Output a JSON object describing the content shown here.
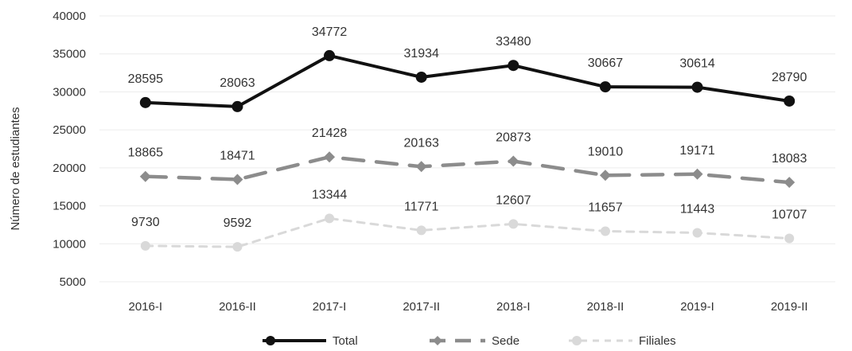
{
  "chart_data": {
    "type": "line",
    "title": "",
    "xlabel": "",
    "ylabel": "Número de estudiantes",
    "ylim": [
      5000,
      40000
    ],
    "yticks": [
      5000,
      10000,
      15000,
      20000,
      25000,
      30000,
      35000,
      40000
    ],
    "categories": [
      "2016-I",
      "2016-II",
      "2017-I",
      "2017-II",
      "2018-I",
      "2018-II",
      "2019-I",
      "2019-II"
    ],
    "grid": true,
    "legend_position": "bottom",
    "series": [
      {
        "name": "Total",
        "values": [
          28595,
          28063,
          34772,
          31934,
          33480,
          30667,
          30614,
          28790
        ],
        "color": "#111111",
        "line_style": "solid",
        "marker": "circle"
      },
      {
        "name": "Sede",
        "values": [
          18865,
          18471,
          21428,
          20163,
          20873,
          19010,
          19171,
          18083
        ],
        "color": "#8c8c8c",
        "line_style": "dashed",
        "marker": "diamond"
      },
      {
        "name": "Filiales",
        "values": [
          9730,
          9592,
          13344,
          11771,
          12607,
          11657,
          11443,
          10707
        ],
        "color": "#d9d9d9",
        "line_style": "dotted",
        "marker": "circle"
      }
    ]
  }
}
